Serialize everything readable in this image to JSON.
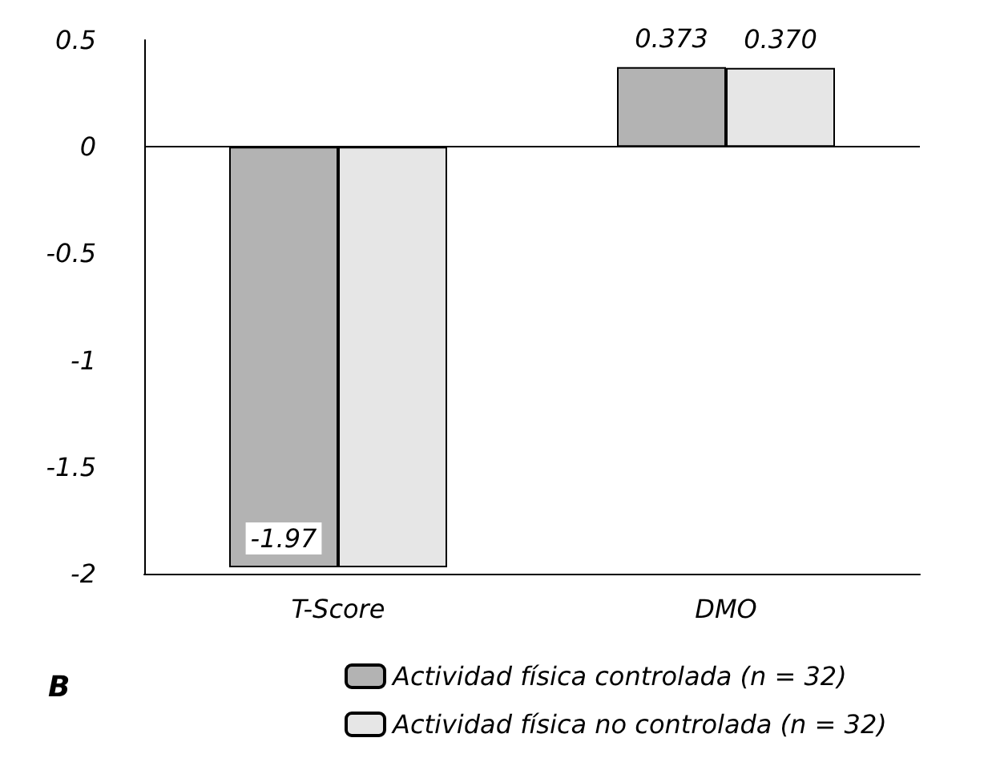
{
  "chart_data": {
    "type": "bar",
    "categories": [
      "T-Score",
      "DMO"
    ],
    "series": [
      {
        "name": "Actividad física controlada (n = 32)",
        "color": "#b3b3b3",
        "values": [
          -1.97,
          0.373
        ],
        "value_labels": [
          "-1.97",
          "0.373"
        ]
      },
      {
        "name": "Actividad física no controlada (n = 32)",
        "color": "#e6e6e6",
        "values": [
          -1.97,
          0.37
        ],
        "value_labels": [
          null,
          "0.370"
        ]
      }
    ],
    "ylim": [
      -2,
      0.5
    ],
    "yticks": [
      -2,
      -1.5,
      -1,
      -0.5,
      0,
      0.5
    ],
    "grid": false,
    "ref_lines": [
      {
        "axis": "y",
        "value": 0
      }
    ],
    "legend": "bottom",
    "annotations": [
      "B"
    ]
  }
}
